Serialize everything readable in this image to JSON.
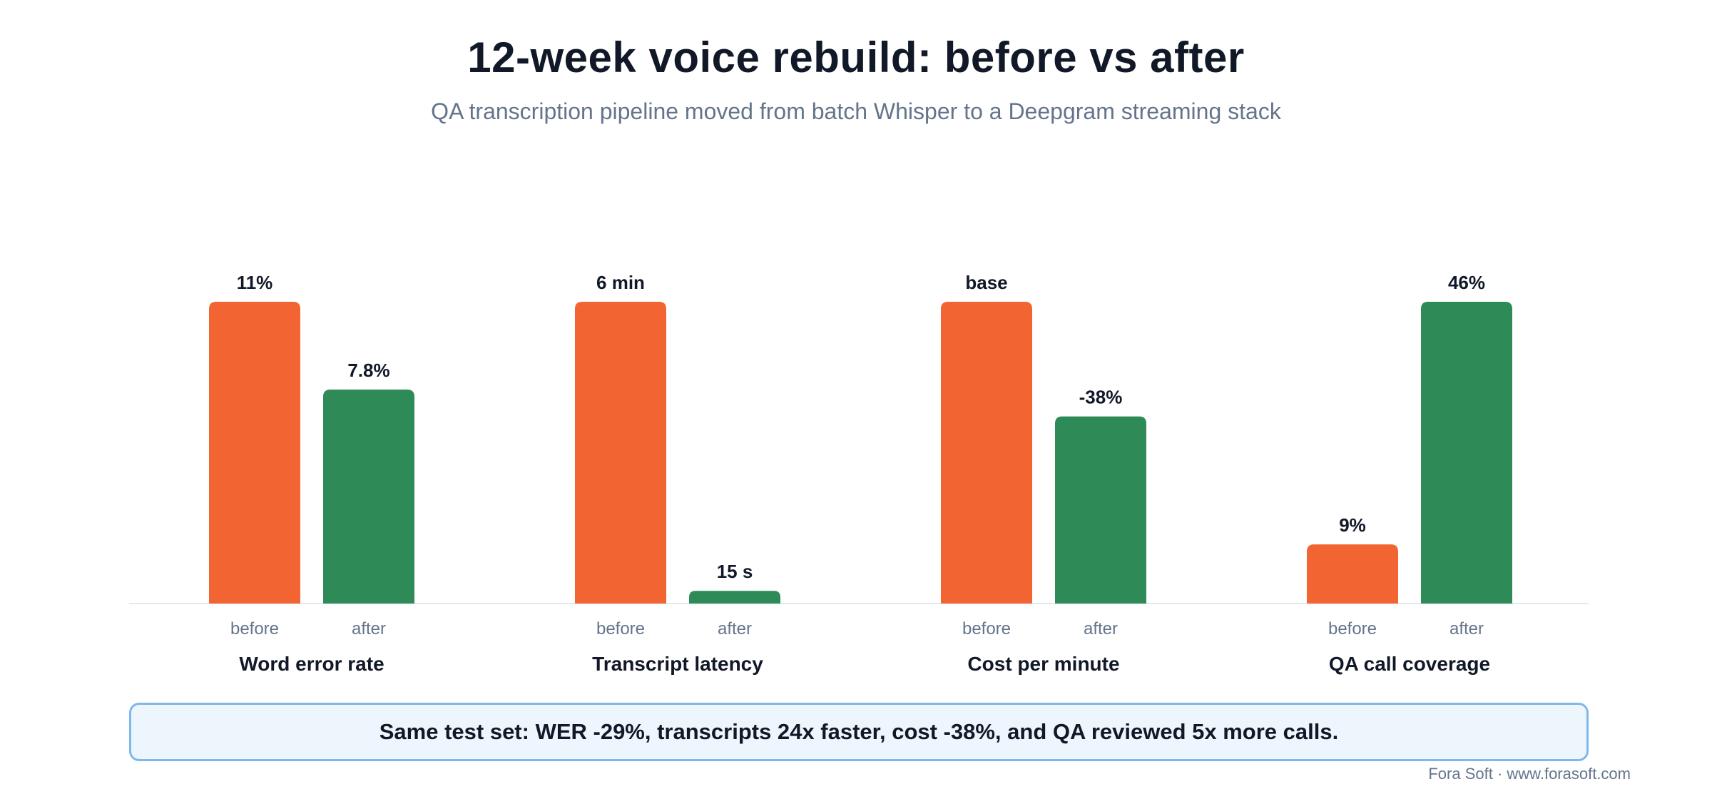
{
  "header": {
    "title": "12-week voice rebuild: before vs after",
    "subtitle": "QA transcription pipeline moved from batch Whisper to a Deepgram streaming stack"
  },
  "chart_data": {
    "type": "bar",
    "series_labels": [
      "before",
      "after"
    ],
    "colors": {
      "before": "#f26532",
      "after": "#2e8b57",
      "baseline": "#e2e8f0"
    },
    "groups": [
      {
        "category": "Word error rate",
        "before": {
          "value": 1.0,
          "label": "11%"
        },
        "after": {
          "value": 0.709,
          "label": "7.8%"
        }
      },
      {
        "category": "Transcript latency",
        "before": {
          "value": 1.0,
          "label": "6 min"
        },
        "after": {
          "value": 0.042,
          "label": "15 s"
        }
      },
      {
        "category": "Cost per minute",
        "before": {
          "value": 1.0,
          "label": "base"
        },
        "after": {
          "value": 0.62,
          "label": "-38%"
        }
      },
      {
        "category": "QA call coverage",
        "before": {
          "value": 0.196,
          "label": "9%"
        },
        "after": {
          "value": 1.0,
          "label": "46%"
        }
      }
    ],
    "ylim": [
      0,
      1
    ]
  },
  "callout": {
    "text": "Same test set: WER -29%, transcripts 24x faster, cost -38%, and QA reviewed 5x more calls."
  },
  "footer": {
    "credit": "Fora Soft · www.forasoft.com"
  }
}
